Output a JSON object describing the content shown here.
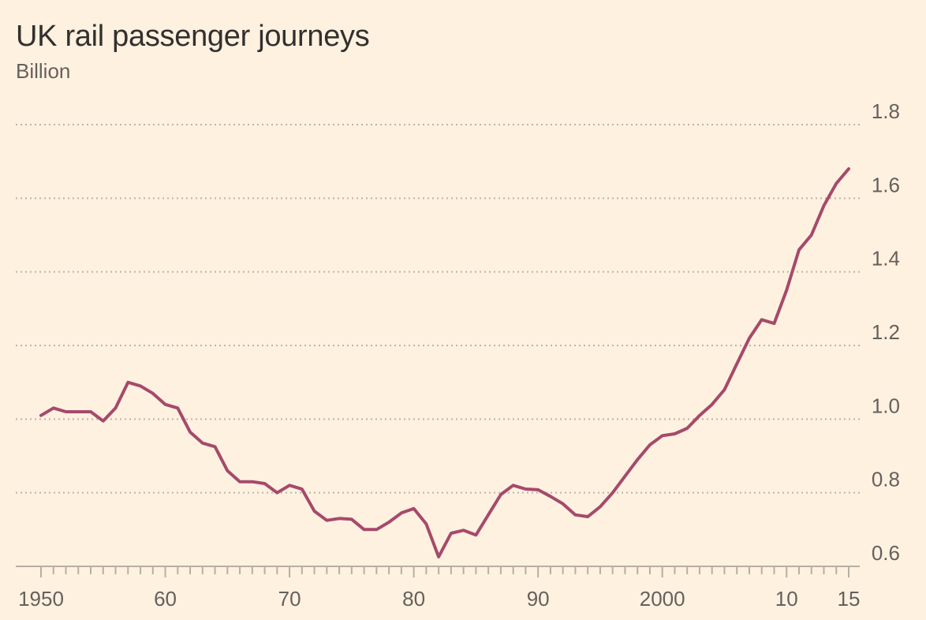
{
  "chart_data": {
    "type": "line",
    "title": "UK rail passenger journeys",
    "subtitle": "Billion",
    "xlabel": "",
    "ylabel": "",
    "xlim": [
      1950,
      2015
    ],
    "ylim": [
      0.6,
      1.8
    ],
    "grid": true,
    "y_ticks": [
      {
        "value": 0.6,
        "label": "0.6"
      },
      {
        "value": 0.8,
        "label": "0.8"
      },
      {
        "value": 1.0,
        "label": "1.0"
      },
      {
        "value": 1.2,
        "label": "1.2"
      },
      {
        "value": 1.4,
        "label": "1.4"
      },
      {
        "value": 1.6,
        "label": "1.6"
      },
      {
        "value": 1.8,
        "label": "1.8"
      }
    ],
    "x_ticks": [
      {
        "value": 1950,
        "label": "1950"
      },
      {
        "value": 1960,
        "label": "60"
      },
      {
        "value": 1970,
        "label": "70"
      },
      {
        "value": 1980,
        "label": "80"
      },
      {
        "value": 1990,
        "label": "90"
      },
      {
        "value": 2000,
        "label": "2000"
      },
      {
        "value": 2010,
        "label": "10"
      },
      {
        "value": 2015,
        "label": "15"
      }
    ],
    "series": [
      {
        "color": "#a54a6b",
        "x": [
          1950,
          1951,
          1952,
          1953,
          1954,
          1955,
          1956,
          1957,
          1958,
          1959,
          1960,
          1961,
          1962,
          1963,
          1964,
          1965,
          1966,
          1967,
          1968,
          1969,
          1970,
          1971,
          1972,
          1973,
          1974,
          1975,
          1976,
          1977,
          1978,
          1979,
          1980,
          1981,
          1982,
          1983,
          1984,
          1985,
          1986,
          1987,
          1988,
          1989,
          1990,
          1991,
          1992,
          1993,
          1994,
          1995,
          1996,
          1997,
          1998,
          1999,
          2000,
          2001,
          2002,
          2003,
          2004,
          2005,
          2006,
          2007,
          2008,
          2009,
          2010,
          2011,
          2012,
          2013,
          2014,
          2015
        ],
        "values": [
          1.01,
          1.03,
          1.02,
          1.02,
          1.02,
          0.995,
          1.03,
          1.1,
          1.09,
          1.07,
          1.04,
          1.03,
          0.965,
          0.935,
          0.925,
          0.86,
          0.83,
          0.83,
          0.825,
          0.8,
          0.82,
          0.81,
          0.75,
          0.725,
          0.73,
          0.728,
          0.7,
          0.7,
          0.72,
          0.745,
          0.757,
          0.715,
          0.626,
          0.69,
          0.698,
          0.685,
          0.74,
          0.795,
          0.82,
          0.81,
          0.808,
          0.79,
          0.77,
          0.74,
          0.735,
          0.762,
          0.8,
          0.845,
          0.89,
          0.93,
          0.955,
          0.96,
          0.975,
          1.01,
          1.04,
          1.08,
          1.15,
          1.22,
          1.27,
          1.26,
          1.35,
          1.46,
          1.5,
          1.58,
          1.64,
          1.68
        ]
      }
    ]
  }
}
